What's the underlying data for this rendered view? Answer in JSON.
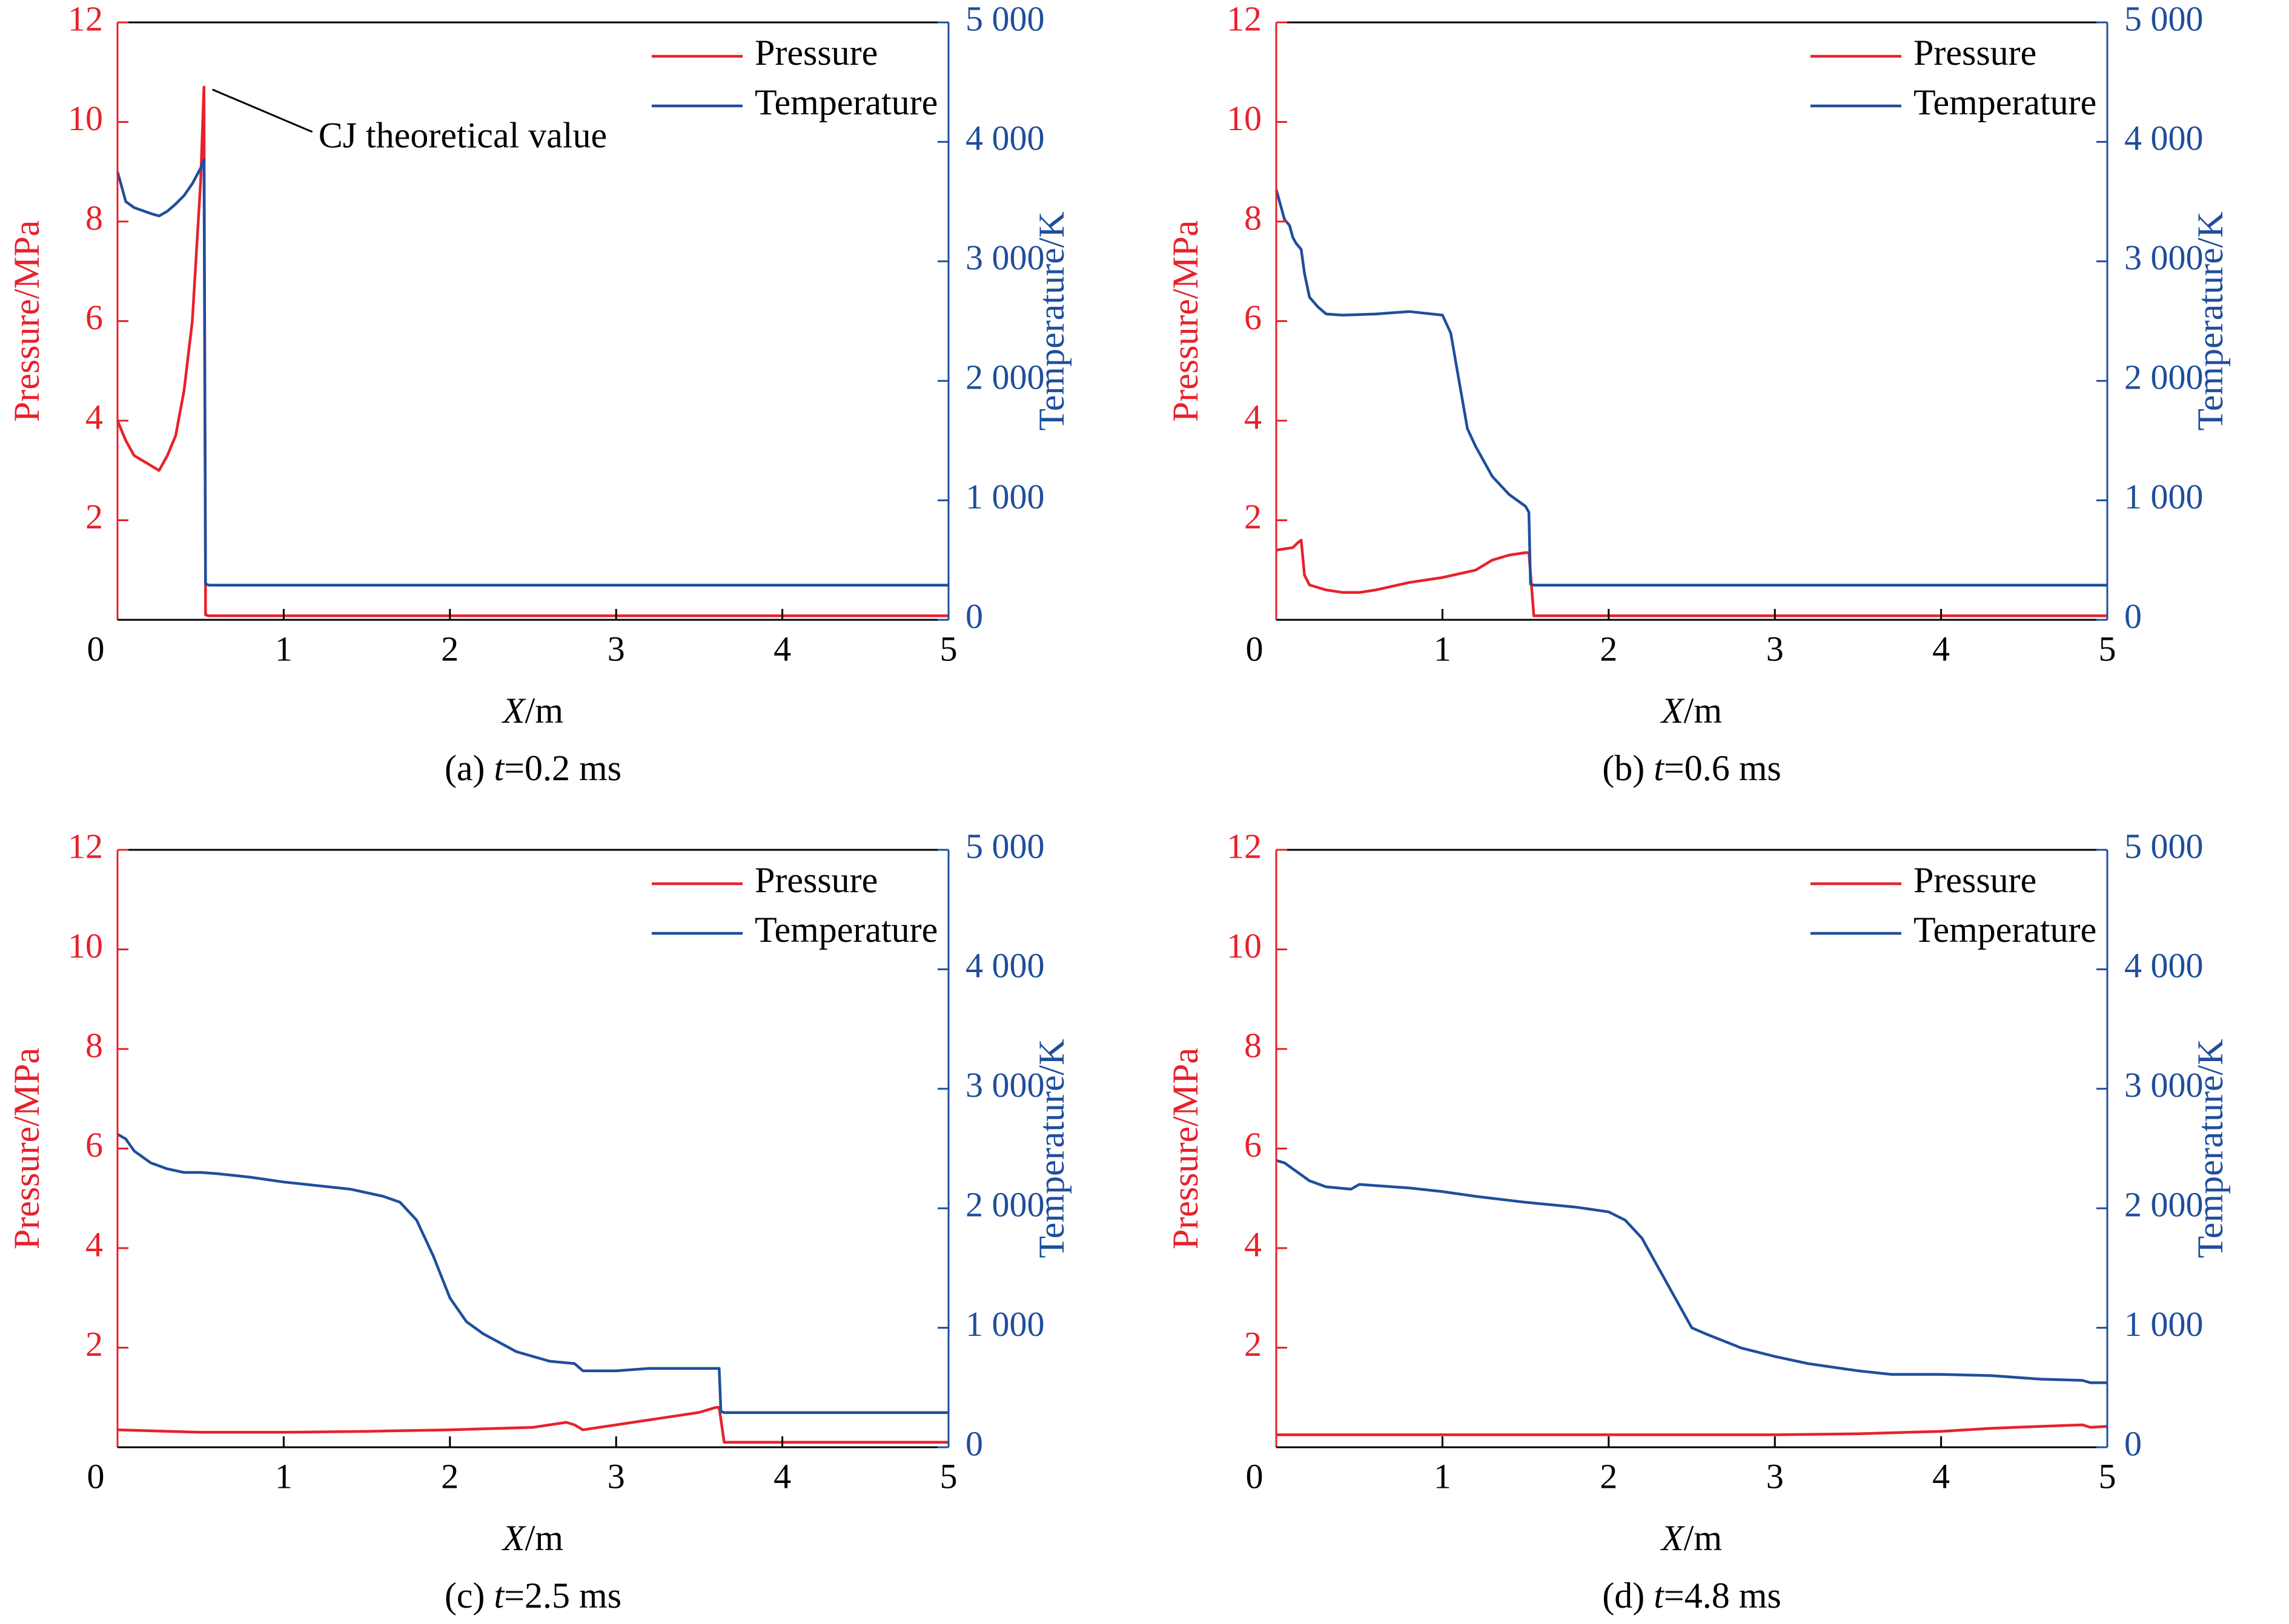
{
  "colors": {
    "pressure": "#e8212b",
    "temperature": "#1f4e9c",
    "axis": "#000000"
  },
  "chart_data": [
    {
      "type": "line",
      "caption": {
        "prefix": "(a) ",
        "var": "t",
        "value": "=0.2 ms"
      },
      "xlabel": {
        "var": "X",
        "unit": "/m"
      },
      "ylabel_left": "Pressure/MPa",
      "ylabel_right": "Temperature/K",
      "xlim": [
        0,
        5
      ],
      "ylim_left": [
        0,
        12
      ],
      "ylim_right": [
        0,
        5000
      ],
      "xticks": [
        "0",
        "1",
        "2",
        "3",
        "4",
        "5"
      ],
      "yticks_left": [
        "2",
        "4",
        "6",
        "8",
        "10",
        "12"
      ],
      "yticks_right": [
        "0",
        "1 000",
        "2 000",
        "3 000",
        "4 000",
        "5 000"
      ],
      "legend": [
        "Pressure",
        "Temperature"
      ],
      "legend_position": "top-right",
      "annotation": {
        "text": "CJ theoretical value",
        "x": 0.52,
        "y": 10.7
      },
      "series": [
        {
          "name": "Pressure",
          "axis": "left",
          "x": [
            0,
            0.05,
            0.1,
            0.2,
            0.25,
            0.3,
            0.35,
            0.4,
            0.45,
            0.5,
            0.52,
            0.53,
            0.55,
            1.0,
            5.0
          ],
          "y": [
            4.0,
            3.6,
            3.3,
            3.1,
            3.0,
            3.3,
            3.7,
            4.6,
            6.0,
            8.8,
            10.7,
            0.1,
            0.08,
            0.08,
            0.08
          ]
        },
        {
          "name": "Temperature",
          "axis": "right",
          "x": [
            0,
            0.02,
            0.05,
            0.1,
            0.2,
            0.25,
            0.3,
            0.35,
            0.4,
            0.45,
            0.5,
            0.52,
            0.53,
            0.55,
            1.0,
            5.0
          ],
          "y": [
            3750,
            3650,
            3500,
            3450,
            3400,
            3380,
            3420,
            3480,
            3550,
            3650,
            3780,
            3850,
            300,
            290,
            290,
            290
          ]
        }
      ]
    },
    {
      "type": "line",
      "caption": {
        "prefix": "(b) ",
        "var": "t",
        "value": "=0.6 ms"
      },
      "xlabel": {
        "var": "X",
        "unit": "/m"
      },
      "ylabel_left": "Pressure/MPa",
      "ylabel_right": "Temperature/K",
      "xlim": [
        0,
        5
      ],
      "ylim_left": [
        0,
        12
      ],
      "ylim_right": [
        0,
        5000
      ],
      "xticks": [
        "0",
        "1",
        "2",
        "3",
        "4",
        "5"
      ],
      "yticks_left": [
        "2",
        "4",
        "6",
        "8",
        "10",
        "12"
      ],
      "yticks_right": [
        "0",
        "1 000",
        "2 000",
        "3 000",
        "4 000",
        "5 000"
      ],
      "legend": [
        "Pressure",
        "Temperature"
      ],
      "legend_position": "top-right",
      "series": [
        {
          "name": "Pressure",
          "axis": "left",
          "x": [
            0,
            0.1,
            0.13,
            0.15,
            0.17,
            0.2,
            0.3,
            0.4,
            0.5,
            0.6,
            0.8,
            1.0,
            1.2,
            1.3,
            1.4,
            1.5,
            1.52,
            1.55,
            2.0,
            5.0
          ],
          "y": [
            1.4,
            1.45,
            1.55,
            1.6,
            0.9,
            0.7,
            0.6,
            0.55,
            0.55,
            0.6,
            0.75,
            0.85,
            1.0,
            1.2,
            1.3,
            1.35,
            1.35,
            0.08,
            0.08,
            0.08
          ]
        },
        {
          "name": "Temperature",
          "axis": "right",
          "x": [
            0,
            0.02,
            0.05,
            0.08,
            0.1,
            0.12,
            0.15,
            0.17,
            0.2,
            0.25,
            0.3,
            0.4,
            0.6,
            0.8,
            1.0,
            1.05,
            1.1,
            1.15,
            1.2,
            1.3,
            1.4,
            1.5,
            1.52,
            1.53,
            1.55,
            2.0,
            5.0
          ],
          "y": [
            3600,
            3500,
            3350,
            3300,
            3200,
            3150,
            3100,
            2900,
            2700,
            2620,
            2560,
            2550,
            2560,
            2580,
            2550,
            2400,
            2000,
            1600,
            1450,
            1200,
            1050,
            950,
            900,
            300,
            290,
            290,
            290
          ]
        }
      ]
    },
    {
      "type": "line",
      "caption": {
        "prefix": "(c) ",
        "var": "t",
        "value": "=2.5 ms"
      },
      "xlabel": {
        "var": "X",
        "unit": "/m"
      },
      "ylabel_left": "Pressure/MPa",
      "ylabel_right": "Temperature/K",
      "xlim": [
        0,
        5
      ],
      "ylim_left": [
        0,
        12
      ],
      "ylim_right": [
        0,
        5000
      ],
      "xticks": [
        "0",
        "1",
        "2",
        "3",
        "4",
        "5"
      ],
      "yticks_left": [
        "2",
        "4",
        "6",
        "8",
        "10",
        "12"
      ],
      "yticks_right": [
        "0",
        "1 000",
        "2 000",
        "3 000",
        "4 000",
        "5 000"
      ],
      "legend": [
        "Pressure",
        "Temperature"
      ],
      "legend_position": "top-right",
      "series": [
        {
          "name": "Pressure",
          "axis": "left",
          "x": [
            0,
            0.5,
            1.0,
            1.5,
            2.0,
            2.5,
            2.7,
            2.75,
            2.8,
            3.0,
            3.3,
            3.5,
            3.6,
            3.62,
            3.65,
            4.0,
            5.0
          ],
          "y": [
            0.35,
            0.3,
            0.3,
            0.32,
            0.35,
            0.4,
            0.5,
            0.45,
            0.35,
            0.45,
            0.6,
            0.7,
            0.8,
            0.8,
            0.1,
            0.1,
            0.1
          ]
        },
        {
          "name": "Temperature",
          "axis": "right",
          "x": [
            0,
            0.05,
            0.1,
            0.2,
            0.3,
            0.4,
            0.5,
            0.6,
            0.8,
            1.0,
            1.2,
            1.4,
            1.6,
            1.7,
            1.8,
            1.9,
            2.0,
            2.1,
            2.2,
            2.4,
            2.6,
            2.75,
            2.8,
            3.0,
            3.2,
            3.4,
            3.6,
            3.62,
            3.63,
            3.65,
            4.0,
            5.0
          ],
          "y": [
            2620,
            2580,
            2480,
            2380,
            2330,
            2300,
            2300,
            2290,
            2260,
            2220,
            2190,
            2160,
            2100,
            2050,
            1900,
            1600,
            1250,
            1050,
            950,
            800,
            720,
            700,
            640,
            640,
            660,
            660,
            660,
            660,
            300,
            290,
            290,
            290
          ]
        }
      ]
    },
    {
      "type": "line",
      "caption": {
        "prefix": "(d) ",
        "var": "t",
        "value": "=4.8 ms"
      },
      "xlabel": {
        "var": "X",
        "unit": "/m"
      },
      "ylabel_left": "Pressure/MPa",
      "ylabel_right": "Temperature/K",
      "xlim": [
        0,
        5
      ],
      "ylim_left": [
        0,
        12
      ],
      "ylim_right": [
        0,
        5000
      ],
      "xticks": [
        "0",
        "1",
        "2",
        "3",
        "4",
        "5"
      ],
      "yticks_left": [
        "2",
        "4",
        "6",
        "8",
        "10",
        "12"
      ],
      "yticks_right": [
        "0",
        "1 000",
        "2 000",
        "3 000",
        "4 000",
        "5 000"
      ],
      "legend": [
        "Pressure",
        "Temperature"
      ],
      "legend_position": "top-right",
      "series": [
        {
          "name": "Pressure",
          "axis": "left",
          "x": [
            0,
            1.0,
            2.0,
            3.0,
            3.5,
            4.0,
            4.3,
            4.6,
            4.85,
            4.9,
            5.0
          ],
          "y": [
            0.25,
            0.25,
            0.25,
            0.25,
            0.27,
            0.32,
            0.38,
            0.42,
            0.45,
            0.4,
            0.42
          ]
        },
        {
          "name": "Temperature",
          "axis": "right",
          "x": [
            0,
            0.05,
            0.1,
            0.2,
            0.3,
            0.45,
            0.5,
            0.6,
            0.8,
            1.0,
            1.2,
            1.5,
            1.8,
            2.0,
            2.1,
            2.2,
            2.3,
            2.4,
            2.5,
            2.6,
            2.8,
            3.0,
            3.2,
            3.5,
            3.7,
            4.0,
            4.3,
            4.6,
            4.85,
            4.9,
            5.0
          ],
          "y": [
            2400,
            2380,
            2330,
            2230,
            2180,
            2160,
            2200,
            2190,
            2170,
            2140,
            2100,
            2050,
            2010,
            1970,
            1900,
            1750,
            1500,
            1250,
            1000,
            940,
            830,
            760,
            700,
            640,
            610,
            610,
            600,
            570,
            560,
            540,
            540
          ]
        }
      ]
    }
  ]
}
